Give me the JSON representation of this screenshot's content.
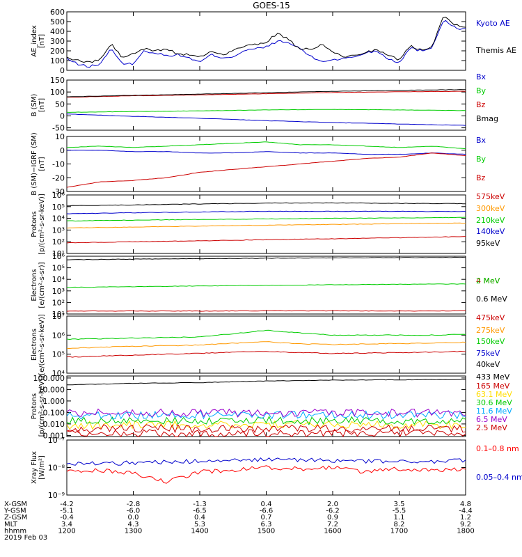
{
  "title": "GOES-15",
  "date": "2019 Feb 03",
  "time_axis": {
    "start_hhmm": 1200,
    "end_hhmm": 1800,
    "ticks": [
      "1200",
      "1300",
      "1400",
      "1500",
      "1600",
      "1700",
      "1800"
    ],
    "ephemeris": [
      {
        "label": "X-GSM",
        "values": [
          "-4.2",
          "-2.8",
          "-1.3",
          "0.4",
          "2.0",
          "3.5",
          "4.8"
        ]
      },
      {
        "label": "Y-GSM",
        "values": [
          "-5.1",
          "-6.0",
          "-6.5",
          "-6.6",
          "-6.2",
          "-5.5",
          "-4.4"
        ]
      },
      {
        "label": "Z-GSM",
        "values": [
          "-0.4",
          "0.0",
          "0.4",
          "0.7",
          "0.9",
          "1.1",
          "1.2"
        ]
      },
      {
        "label": "MLT",
        "values": [
          "3.4",
          "4.3",
          "5.3",
          "6.3",
          "7.2",
          "8.2",
          "9.2"
        ]
      },
      {
        "label": "hhmm",
        "values": [
          "1200",
          "1300",
          "1400",
          "1500",
          "1600",
          "1700",
          "1800"
        ]
      }
    ]
  },
  "chart_data": [
    {
      "type": "line",
      "id": "ae",
      "ylabel": [
        "AE_index",
        "[nT]"
      ],
      "yscale": "linear",
      "ylim": [
        0,
        600
      ],
      "yticks": [
        0,
        100,
        200,
        300,
        400,
        500,
        600
      ],
      "grid": false,
      "legend_placement": "right",
      "x": [
        1200,
        1210,
        1220,
        1230,
        1240,
        1250,
        1300,
        1310,
        1320,
        1330,
        1340,
        1350,
        1400,
        1410,
        1420,
        1430,
        1440,
        1450,
        1500,
        1510,
        1520,
        1530,
        1540,
        1550,
        1600,
        1610,
        1620,
        1630,
        1640,
        1650,
        1700,
        1710,
        1720,
        1730,
        1740,
        1750,
        1800
      ],
      "series": [
        {
          "name": "Kyoto AE",
          "color": "#0000cc",
          "values": [
            120,
            60,
            40,
            60,
            230,
            60,
            70,
            200,
            180,
            150,
            160,
            130,
            80,
            160,
            130,
            140,
            200,
            220,
            240,
            300,
            280,
            230,
            140,
            90,
            110,
            120,
            140,
            180,
            200,
            120,
            80,
            230,
            200,
            240,
            520,
            440,
            420
          ]
        },
        {
          "name": "Themis AE",
          "color": "#000000",
          "values": [
            130,
            100,
            80,
            110,
            270,
            130,
            170,
            220,
            200,
            220,
            170,
            160,
            130,
            200,
            160,
            200,
            250,
            260,
            290,
            380,
            320,
            210,
            220,
            260,
            190,
            140,
            150,
            190,
            210,
            150,
            110,
            250,
            210,
            250,
            560,
            470,
            450
          ]
        }
      ]
    },
    {
      "type": "line",
      "id": "bsm",
      "ylabel": [
        "B (SM)",
        "[nT]"
      ],
      "yscale": "linear",
      "ylim": [
        -60,
        150
      ],
      "yticks": [
        -50,
        0,
        50,
        100,
        150
      ],
      "grid": false,
      "legend_placement": "right",
      "x": [
        1200,
        1300,
        1400,
        1500,
        1600,
        1700,
        1800
      ],
      "series": [
        {
          "name": "Bx",
          "color": "#0000cc",
          "values": [
            8,
            -2,
            -10,
            -20,
            -28,
            -34,
            -40
          ]
        },
        {
          "name": "By",
          "color": "#00cc00",
          "values": [
            15,
            18,
            21,
            25,
            27,
            25,
            22
          ]
        },
        {
          "name": "Bz",
          "color": "#cc0000",
          "values": [
            78,
            84,
            88,
            93,
            98,
            101,
            103
          ]
        },
        {
          "name": "Bmag",
          "color": "#000000",
          "values": [
            80,
            86,
            91,
            97,
            103,
            107,
            110
          ]
        }
      ]
    },
    {
      "type": "line",
      "id": "bigrf",
      "ylabel": [
        "B (SM)−IGRF (SM)",
        "[nT]"
      ],
      "yscale": "linear",
      "ylim": [
        -30,
        10
      ],
      "yticks": [
        -30,
        -20,
        -10,
        0,
        10
      ],
      "grid": false,
      "legend_placement": "right",
      "x": [
        1200,
        1230,
        1300,
        1330,
        1400,
        1430,
        1500,
        1530,
        1600,
        1630,
        1700,
        1730,
        1800
      ],
      "series": [
        {
          "name": "Bx",
          "color": "#0000cc",
          "values": [
            0,
            0,
            -1,
            -1,
            -2,
            -2,
            -1,
            -2,
            -2,
            -3,
            -3,
            -2,
            -3
          ]
        },
        {
          "name": "By",
          "color": "#00cc00",
          "values": [
            2,
            3,
            2,
            3,
            4,
            5,
            6,
            4,
            4,
            3,
            2,
            3,
            1
          ]
        },
        {
          "name": "Bz",
          "color": "#cc0000",
          "values": [
            -27,
            -23,
            -22,
            -20,
            -16,
            -14,
            -12,
            -10,
            -8,
            -6,
            -5,
            -2,
            -4
          ]
        }
      ]
    },
    {
      "type": "line",
      "id": "protons_kev",
      "ylabel": [
        "Protons",
        "[p/(cm²-s-sr-keV)]"
      ],
      "yscale": "log",
      "ylim": [
        10,
        1000000
      ],
      "yticks": [
        10,
        100,
        1000,
        10000,
        100000,
        1000000
      ],
      "yticklabels": [
        "10¹",
        "10²",
        "10³",
        "10⁴",
        "10⁵",
        "10⁶"
      ],
      "grid": false,
      "legend_placement": "right",
      "x": [
        1200,
        1300,
        1400,
        1500,
        1600,
        1700,
        1800
      ],
      "series": [
        {
          "name": "575keV",
          "color": "#cc0000",
          "values": [
            80,
            100,
            120,
            150,
            180,
            220,
            280
          ]
        },
        {
          "name": "300keV",
          "color": "#ff9900",
          "values": [
            1500,
            1800,
            2200,
            2600,
            3000,
            3500,
            4000
          ]
        },
        {
          "name": "210keV",
          "color": "#00cc00",
          "values": [
            6000,
            7000,
            8000,
            9000,
            10000,
            11000,
            12000
          ]
        },
        {
          "name": "140keV",
          "color": "#0000cc",
          "values": [
            25000,
            30000,
            35000,
            40000,
            40000,
            40000,
            38000
          ]
        },
        {
          "name": "95keV",
          "color": "#000000",
          "values": [
            120000,
            140000,
            170000,
            200000,
            210000,
            190000,
            180000
          ]
        }
      ]
    },
    {
      "type": "line",
      "id": "electrons_mev",
      "ylabel": [
        "Electrons",
        "[e/(cm²-s-sr)]"
      ],
      "yscale": "log",
      "ylim": [
        10,
        1000000
      ],
      "yticks": [
        10,
        100,
        1000,
        10000,
        100000,
        1000000
      ],
      "yticklabels": [
        "10¹",
        "10²",
        "10³",
        "10⁴",
        "10⁵",
        "10⁶"
      ],
      "grid": false,
      "legend_placement": "right",
      "x": [
        1200,
        1300,
        1400,
        1500,
        1600,
        1700,
        1800
      ],
      "series": [
        {
          "name": "4 MeV",
          "color": "#cc0000",
          "values": [
            18,
            18,
            18,
            19,
            19,
            18,
            19
          ]
        },
        {
          "name": "2 MeV",
          "color": "#00cc00",
          "values": [
            2000,
            2300,
            2700,
            3000,
            3400,
            3700,
            4000
          ]
        },
        {
          "name": "0.6 MeV",
          "color": "#000000",
          "values": [
            500000,
            560000,
            620000,
            680000,
            720000,
            760000,
            800000
          ]
        }
      ]
    },
    {
      "type": "line",
      "id": "electrons_kev",
      "ylabel": [
        "Electrons",
        "[e/(cm²-s-sr-keV)]"
      ],
      "yscale": "log",
      "ylim": [
        10000,
        10000000
      ],
      "yticks": [
        10000,
        100000,
        1000000,
        10000000
      ],
      "yticklabels": [
        "10⁴",
        "10⁵",
        "10⁶",
        "10⁷"
      ],
      "grid": false,
      "legend_placement": "right",
      "x": [
        1200,
        1230,
        1300,
        1330,
        1400,
        1430,
        1500,
        1530,
        1600,
        1630,
        1700,
        1730,
        1800
      ],
      "series": [
        {
          "name": "475keV",
          "color": "#cc0000",
          "values": [
            70000,
            80000,
            90000,
            100000,
            110000,
            130000,
            140000,
            120000,
            110000,
            115000,
            120000,
            130000,
            140000
          ]
        },
        {
          "name": "275keV",
          "color": "#ff9900",
          "values": [
            200000,
            230000,
            260000,
            280000,
            300000,
            380000,
            450000,
            350000,
            320000,
            340000,
            360000,
            380000,
            420000
          ]
        },
        {
          "name": "150keV",
          "color": "#00cc00",
          "values": [
            600000,
            650000,
            700000,
            750000,
            800000,
            1200000,
            1800000,
            1300000,
            1000000,
            1000000,
            1000000,
            1000000,
            1100000
          ]
        },
        {
          "name": "75keV",
          "color": "#0000cc",
          "values": [
            null,
            null,
            null,
            null,
            null,
            null,
            null,
            null,
            null,
            null,
            null,
            null,
            null
          ]
        },
        {
          "name": "40keV",
          "color": "#000000",
          "values": [
            null,
            null,
            null,
            null,
            null,
            null,
            null,
            null,
            null,
            null,
            null,
            null,
            null
          ]
        }
      ]
    },
    {
      "type": "line",
      "id": "protons_mev",
      "ylabel": [
        "Protons",
        "[p/(cm²-s-sr-keV)]"
      ],
      "yscale": "log",
      "ylim": [
        0.0008,
        150
      ],
      "yticks": [
        0.001,
        0.01,
        0.1,
        1,
        10,
        100
      ],
      "yticklabels": [
        "0.001",
        "0.010",
        "0.100",
        "1.000",
        "10.000",
        "100.000"
      ],
      "grid": false,
      "legend_placement": "right",
      "x": [
        1200,
        1300,
        1400,
        1500,
        1600,
        1700,
        1800
      ],
      "series": [
        {
          "name": "433 MeV",
          "color": "#000000",
          "values": [
            25,
            35,
            40,
            55,
            65,
            70,
            75
          ]
        },
        {
          "name": "165 MeV",
          "color": "#cc0000",
          "values": [
            0.0015,
            0.0015,
            0.0015,
            0.0016,
            0.0016,
            0.0016,
            0.0015
          ]
        },
        {
          "name": "63.1 MeV",
          "color": "#ffdd00",
          "values": [
            0.008,
            0.008,
            0.009,
            0.009,
            0.008,
            0.009,
            0.008
          ]
        },
        {
          "name": "30.6 MeV",
          "color": "#00cc00",
          "values": [
            0.02,
            0.02,
            0.02,
            0.02,
            0.02,
            0.02,
            0.02
          ]
        },
        {
          "name": "11.6 MeV",
          "color": "#00aaff",
          "values": [
            0.06,
            0.06,
            0.06,
            0.06,
            0.06,
            0.06,
            0.06
          ]
        },
        {
          "name": "6.5 MeV",
          "color": "#9900cc",
          "values": [
            0.09,
            0.09,
            0.09,
            0.09,
            0.09,
            0.09,
            0.09
          ]
        },
        {
          "name": "2.5 MeV",
          "color": "#cc0000",
          "values": [
            0.004,
            0.004,
            0.004,
            0.004,
            0.004,
            0.004,
            0.004
          ]
        }
      ]
    },
    {
      "type": "line",
      "id": "xray",
      "ylabel": [
        "Xray Flux",
        "[W/m²]"
      ],
      "yscale": "log",
      "ylim": [
        1e-09,
        1e-07
      ],
      "yticks": [
        1e-09,
        1e-08,
        1e-07
      ],
      "yticklabels": [
        "10⁻⁹",
        "10⁻⁸",
        "10⁻⁷"
      ],
      "grid": false,
      "legend_placement": "right",
      "x": [
        1200,
        1230,
        1300,
        1330,
        1400,
        1430,
        1500,
        1530,
        1600,
        1630,
        1700,
        1730,
        1800
      ],
      "series": [
        {
          "name": "0.1–0.8 nm",
          "color": "#ff0000",
          "values": [
            7e-09,
            8e-09,
            6e-09,
            3e-09,
            7e-09,
            8e-09,
            1e-08,
            9e-09,
            1e-08,
            7e-09,
            9e-09,
            8e-09,
            9e-09
          ]
        },
        {
          "name": "0.05–0.4 nm",
          "color": "#0000cc",
          "values": [
            1.3e-08,
            1.4e-08,
            1.5e-08,
            1.6e-08,
            1.7e-08,
            1.8e-08,
            2e-08,
            1.9e-08,
            1.8e-08,
            1.7e-08,
            1.6e-08,
            1.6e-08,
            1.8e-08
          ]
        }
      ]
    }
  ]
}
